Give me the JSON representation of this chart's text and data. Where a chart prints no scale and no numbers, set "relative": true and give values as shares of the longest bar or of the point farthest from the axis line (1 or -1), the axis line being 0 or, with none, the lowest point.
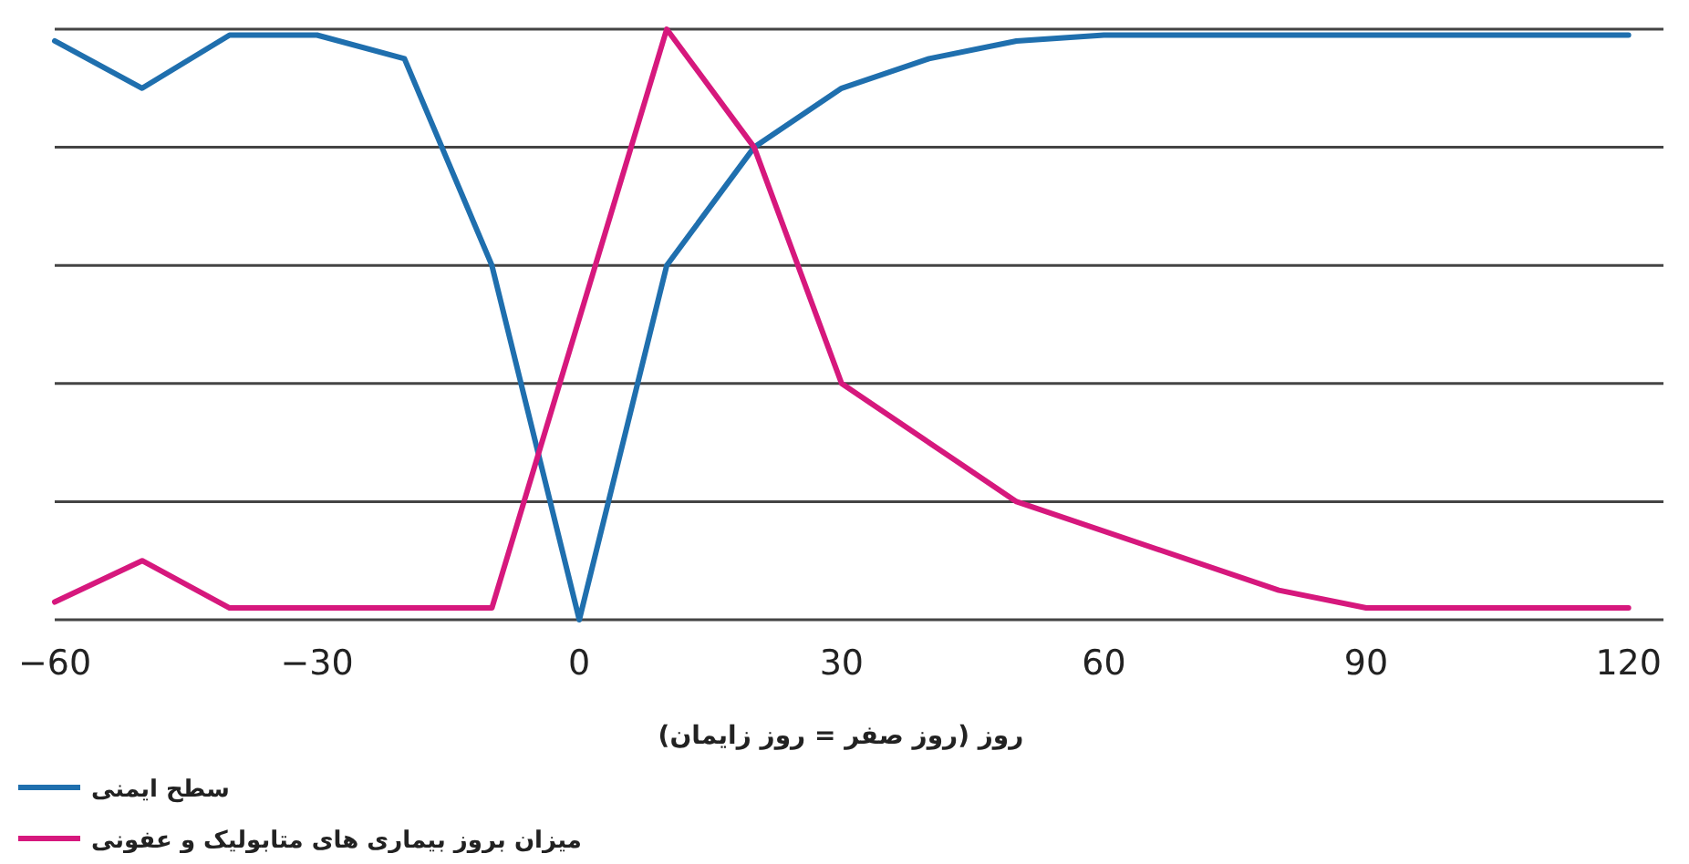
{
  "chart_data": {
    "type": "line",
    "relative": true,
    "xlabel": "روز (روز صفر = روز زایمان)",
    "xlim": [
      -60,
      124
    ],
    "xticks": [
      {
        "value": -60,
        "label": "−60"
      },
      {
        "value": -30,
        "label": "−30"
      },
      0,
      30,
      60,
      90,
      120
    ],
    "grid": "y",
    "legend": "bottom left",
    "series": [
      {
        "name": "سطح ایمنی",
        "color": "#1f6fae",
        "x": [
          -60,
          -50,
          -40,
          -30,
          -20,
          -10,
          0,
          10,
          20,
          30,
          40,
          50,
          60,
          120
        ],
        "values": [
          0.98,
          0.9,
          0.99,
          0.99,
          0.95,
          0.6,
          0,
          0.6,
          0.8,
          0.9,
          0.95,
          0.98,
          0.99,
          0.99
        ]
      },
      {
        "name": "میزان بروز بیماری های متابولیک و عفونی",
        "color": "#d6187d",
        "x": [
          -60,
          -50,
          -40,
          -10,
          10,
          20,
          30,
          50,
          80,
          90,
          120
        ],
        "values": [
          0.03,
          0.1,
          0.02,
          0.02,
          1,
          0.8,
          0.4,
          0.2,
          0.05,
          0.02,
          0.02
        ]
      }
    ]
  }
}
